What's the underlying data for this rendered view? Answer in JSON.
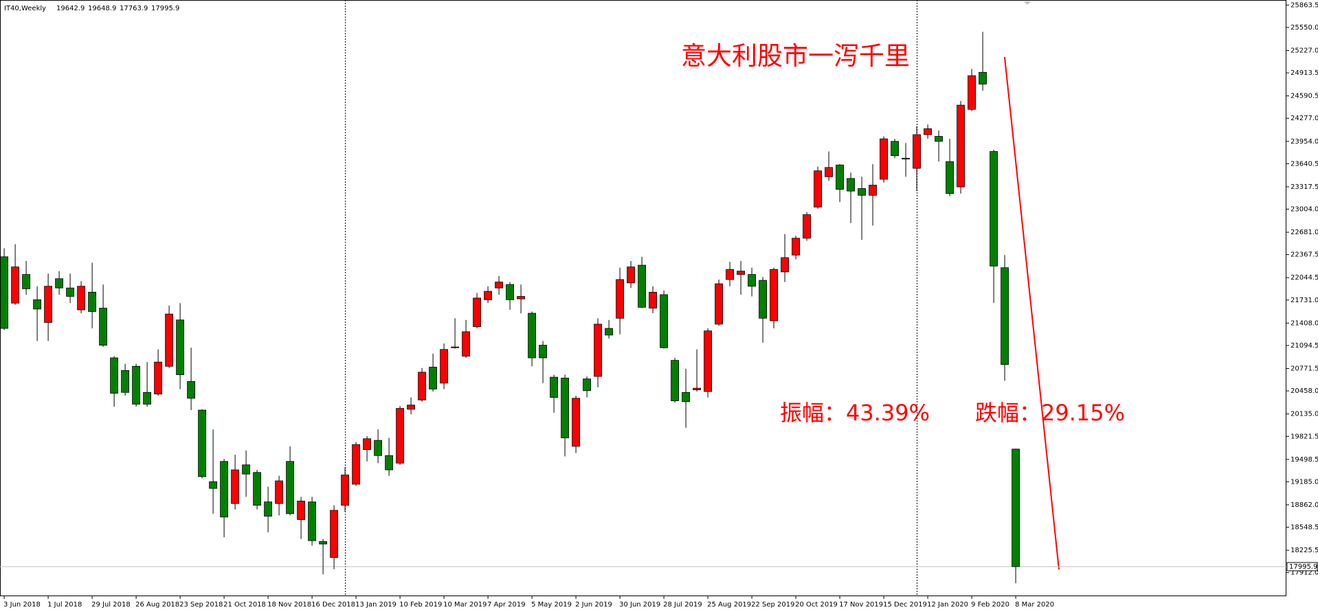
{
  "chart_data": {
    "type": "candlestick",
    "title": "IT40,Weekly",
    "x": [
      "3 Jun 2018",
      null,
      null,
      null,
      "1 Jul 2018",
      null,
      null,
      null,
      "29 Jul 2018",
      null,
      null,
      null,
      "26 Aug 2018",
      null,
      null,
      null,
      "23 Sep 2018",
      null,
      null,
      null,
      "21 Oct 2018",
      null,
      null,
      null,
      "18 Nov 2018",
      null,
      null,
      null,
      "16 Dec 2018",
      null,
      null,
      null,
      "13 Jan 2019",
      null,
      null,
      null,
      "10 Feb 2019",
      null,
      null,
      null,
      "10 Mar 2019",
      null,
      null,
      null,
      "7 Apr 2019",
      null,
      null,
      null,
      "5 May 2019",
      null,
      null,
      null,
      "2 Jun 2019",
      null,
      null,
      null,
      "30 Jun 2019",
      null,
      null,
      null,
      "28 Jul 2019",
      null,
      null,
      null,
      "25 Aug 2019",
      null,
      null,
      null,
      "22 Sep 2019",
      null,
      null,
      null,
      "20 Oct 2019",
      null,
      null,
      null,
      "17 Nov 2019",
      null,
      null,
      null,
      "15 Dec 2019",
      null,
      null,
      null,
      "12 Jan 2020",
      null,
      null,
      null,
      "9 Feb 2020",
      null,
      null,
      null,
      "8 Mar 2020"
    ],
    "open": [
      22337,
      21688,
      22089,
      21735,
      21417,
      22030,
      21900,
      21594,
      21841,
      21617,
      20921,
      20744,
      20803,
      20437,
      20414,
      20803,
      21452,
      20591,
      20189,
      19186,
      19470,
      18880,
      19422,
      19316,
      18903,
      18880,
      19470,
      18655,
      18903,
      18349,
      18124,
      18856,
      19151,
      19635,
      19765,
      19552,
      19446,
      20201,
      20331,
      20791,
      20567,
      21063,
      20945,
      21358,
      21735,
      21900,
      21948,
      21747,
      21546,
      21098,
      20650,
      20638,
      19682,
      20626,
      20661,
      21334,
      21476,
      21971,
      22219,
      21617,
      21806,
      20886,
      20437,
      20473,
      20449,
      21393,
      22018,
      22089,
      22089,
      22007,
      21440,
      22125,
      22361,
      22597,
      23033,
      23458,
      23623,
      23434,
      23293,
      23198,
      23423,
      23954,
      23718,
      23576,
      24048,
      24024,
      23670,
      23316,
      24402,
      24921,
      23812,
      22184,
      19642.9
    ],
    "high": [
      22455,
      22514,
      22278,
      21924,
      22101,
      22136,
      22101,
      21995,
      22254,
      21948,
      20945,
      20838,
      20838,
      20862,
      21039,
      21653,
      21688,
      21063,
      20201,
      19918,
      19505,
      19564,
      19623,
      19352,
      19116,
      19269,
      19682,
      18974,
      18974,
      18384,
      18856,
      19387,
      19741,
      19824,
      19918,
      19800,
      20248,
      20366,
      20779,
      20980,
      21122,
      21476,
      21452,
      21830,
      21924,
      22066,
      21983,
      21948,
      21570,
      21157,
      20685,
      20685,
      20390,
      20661,
      21476,
      21452,
      22184,
      22278,
      22337,
      21924,
      21865,
      20921,
      20768,
      21039,
      21334,
      22018,
      22266,
      22278,
      22184,
      22054,
      22184,
      22656,
      22632,
      22962,
      23600,
      23812,
      23635,
      23517,
      23458,
      23635,
      24024,
      23989,
      23930,
      24166,
      24190,
      24107,
      23989,
      24520,
      24968,
      25488,
      23836,
      22361,
      19648.9
    ],
    "low": [
      21310,
      21664,
      21806,
      21157,
      21157,
      21806,
      21688,
      21546,
      21334,
      21074,
      20237,
      20390,
      20237,
      20237,
      20390,
      20779,
      20484,
      20189,
      19234,
      18738,
      18408,
      18797,
      18974,
      18797,
      18478,
      18714,
      18714,
      18384,
      18290,
      17888,
      17959,
      18762,
      19127,
      19470,
      19446,
      19269,
      19422,
      20130,
      20307,
      20449,
      20484,
      21051,
      20921,
      21334,
      21688,
      21806,
      21594,
      21546,
      20803,
      20567,
      20154,
      19540,
      19588,
      20366,
      20508,
      21192,
      21251,
      21900,
      21617,
      21546,
      21051,
      20296,
      19942,
      20449,
      20366,
      21369,
      21924,
      21806,
      21782,
      21133,
      21334,
      21983,
      22302,
      22561,
      23010,
      23399,
      23104,
      22809,
      22573,
      22774,
      23375,
      23718,
      23458,
      23257,
      23989,
      23670,
      23187,
      23222,
      24378,
      24662,
      21688,
      20602,
      17763.9
    ],
    "close": [
      21334,
      22195,
      21889,
      21605,
      21924,
      21900,
      21782,
      21924,
      21570,
      21098,
      20425,
      20437,
      20272,
      20272,
      20862,
      21535,
      20685,
      20355,
      19257,
      19092,
      18691,
      19352,
      19293,
      18856,
      18703,
      19198,
      18738,
      18915,
      18360,
      18313,
      18785,
      19281,
      19706,
      19788,
      19552,
      19352,
      20213,
      20260,
      20720,
      20484,
      21039,
      21074,
      21287,
      21759,
      21853,
      21983,
      21735,
      21782,
      20921,
      20921,
      20366,
      19800,
      20355,
      20461,
      21393,
      21240,
      22018,
      22195,
      21629,
      21841,
      21063,
      20319,
      20307,
      20496,
      21299,
      21959,
      22160,
      22136,
      21924,
      21476,
      22160,
      22325,
      22597,
      22927,
      23541,
      23588,
      23281,
      23257,
      23198,
      23340,
      23989,
      23753,
      23706,
      24048,
      24131,
      23954,
      23222,
      24461,
      24874,
      24756,
      22207,
      20827,
      17995.9
    ],
    "up_color": "#ff0000",
    "down_color": "#008000",
    "ylim": [
      17582,
      25934
    ],
    "yticks": [
      25863.5,
      {
        "value": 25550,
        "label": "25550.0"
      },
      {
        "value": 25227,
        "label": "25227.0"
      },
      24913.5,
      24590.5,
      {
        "value": 24277,
        "label": "24277.0"
      },
      {
        "value": 23954,
        "label": "23954.0"
      },
      23640.5,
      23317.5,
      {
        "value": 23004,
        "label": "23004.0"
      },
      {
        "value": 22681,
        "label": "22681.0"
      },
      22367.5,
      22044.5,
      {
        "value": 21731,
        "label": "21731.0"
      },
      {
        "value": 21408,
        "label": "21408.0"
      },
      21094.5,
      20771.5,
      {
        "value": 20458,
        "label": "20458.0"
      },
      {
        "value": 20135,
        "label": "20135.0"
      },
      19821.5,
      19498.5,
      {
        "value": 19185,
        "label": "19185.0"
      },
      {
        "value": 18862,
        "label": "18862.0"
      },
      18548.5,
      18225.5,
      {
        "value": 17912,
        "label": "17912.0"
      }
    ],
    "annotations": [
      "意大利股市一泻千里",
      "振幅：43.39%",
      "跌幅：29.15%"
    ]
  }
}
